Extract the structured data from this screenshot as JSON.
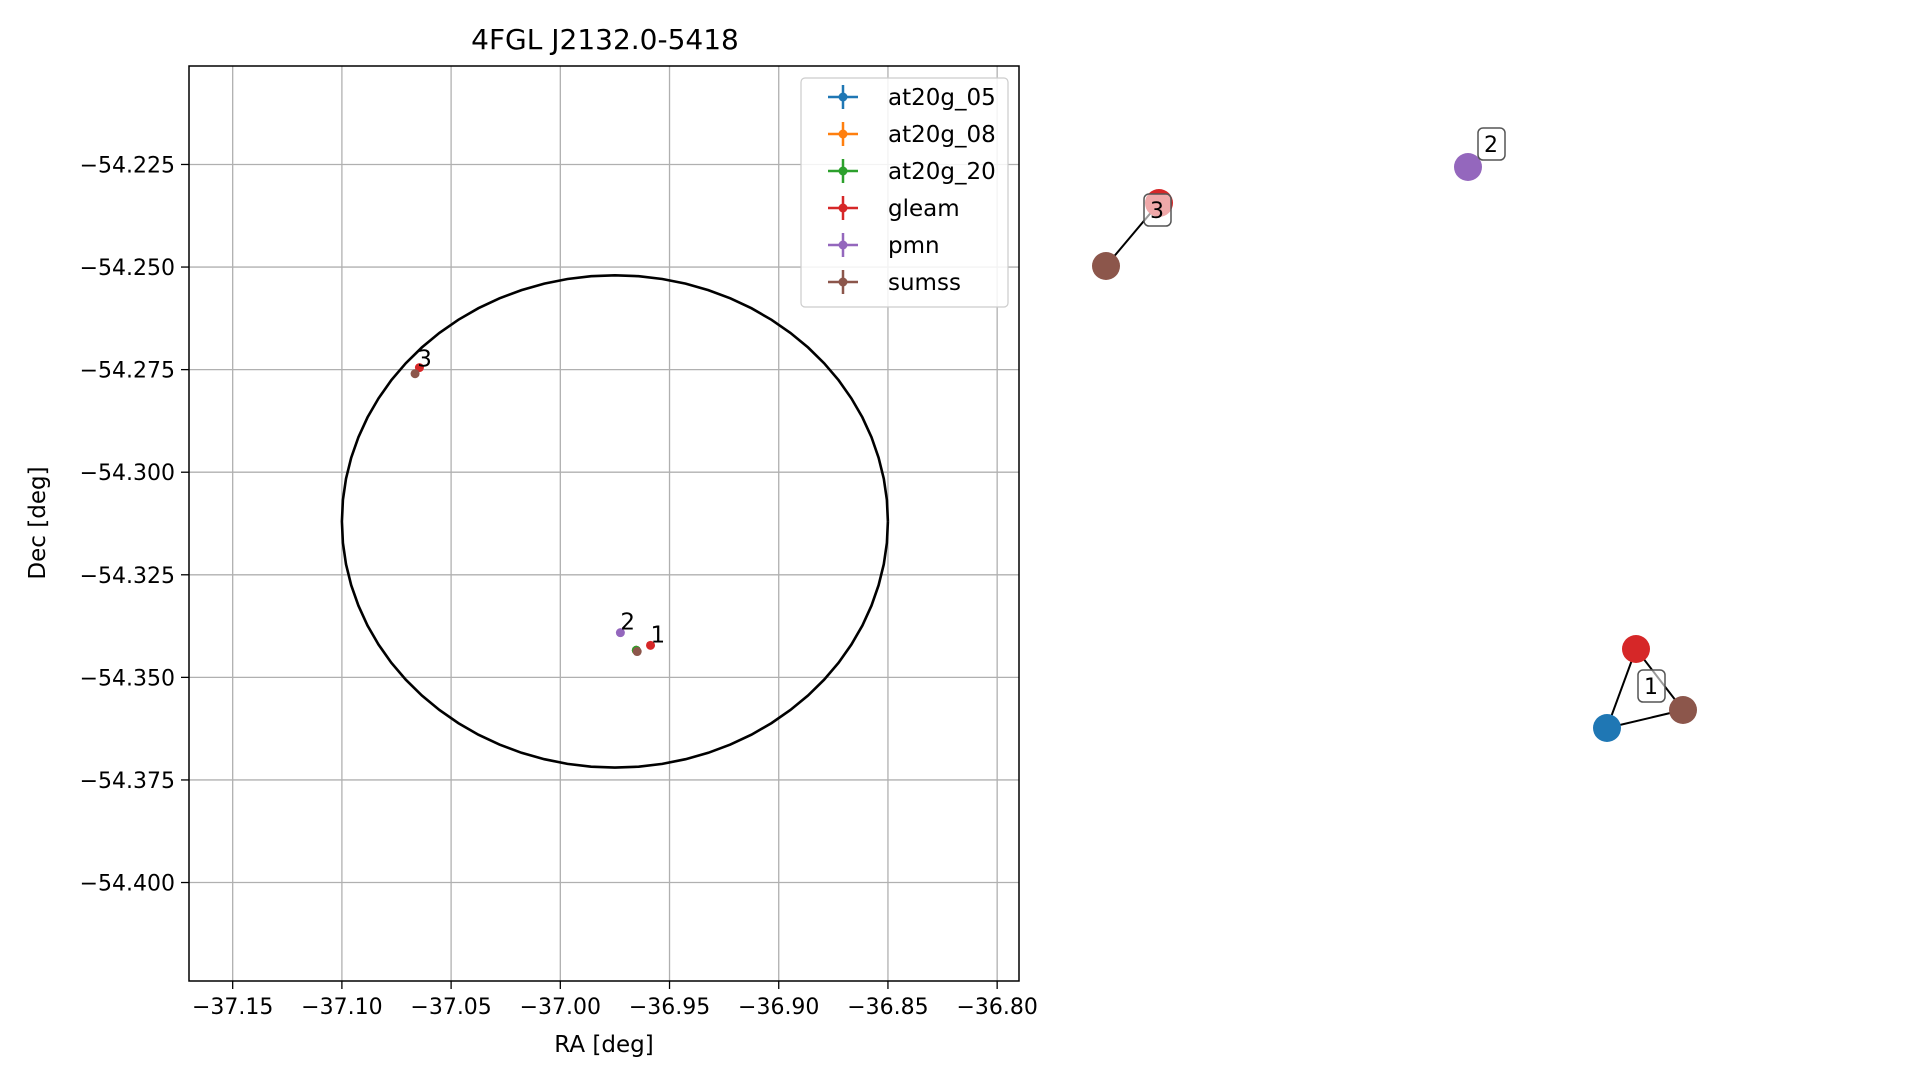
{
  "chart_data": [
    {
      "type": "scatter",
      "title": "4FGL J2132.0-5418",
      "xlabel": "RA [deg]",
      "ylabel": "Dec [deg]",
      "xlim": [
        -37.17,
        -36.79
      ],
      "ylim": [
        -54.424,
        -54.201
      ],
      "grid": true,
      "xticks": [
        -37.15,
        -37.1,
        -37.05,
        -37.0,
        -36.95,
        -36.9,
        -36.85,
        -36.8
      ],
      "xtick_labels": [
        "−37.15",
        "−37.10",
        "−37.05",
        "−37.00",
        "−36.95",
        "−36.90",
        "−36.85",
        "−36.80"
      ],
      "yticks": [
        -54.225,
        -54.25,
        -54.275,
        -54.3,
        -54.325,
        -54.35,
        -54.375,
        -54.4
      ],
      "ytick_labels": [
        "−54.225",
        "−54.250",
        "−54.275",
        "−54.300",
        "−54.325",
        "−54.350",
        "−54.375",
        "−54.400"
      ],
      "legend_position": "top-right",
      "series": [
        {
          "name": "at20g_05",
          "color": "#1f77b4",
          "points": [
            {
              "x": -36.9652,
              "y": -54.3434
            }
          ]
        },
        {
          "name": "at20g_08",
          "color": "#ff7f0e",
          "points": [
            {
              "x": -36.9652,
              "y": -54.3434
            }
          ]
        },
        {
          "name": "at20g_20",
          "color": "#2ca02c",
          "points": [
            {
              "x": -36.9652,
              "y": -54.3434
            }
          ]
        },
        {
          "name": "gleam",
          "color": "#d62728",
          "points": [
            {
              "x": -36.9587,
              "y": -54.3422
            },
            {
              "x": -37.0645,
              "y": -54.2745
            }
          ]
        },
        {
          "name": "pmn",
          "color": "#9467bd",
          "points": [
            {
              "x": -36.9725,
              "y": -54.3391
            }
          ]
        },
        {
          "name": "sumss",
          "color": "#8c564b",
          "points": [
            {
              "x": -36.9648,
              "y": -54.3437
            },
            {
              "x": -37.0665,
              "y": -54.276
            }
          ]
        }
      ],
      "annotations": [
        {
          "text": "1",
          "x": -36.9587,
          "y": -54.3422
        },
        {
          "text": "2",
          "x": -36.9725,
          "y": -54.3391
        },
        {
          "text": "3",
          "x": -37.0655,
          "y": -54.275
        }
      ],
      "ellipse": {
        "center_x": -36.975,
        "center_y": -54.312,
        "width": 0.25,
        "height": 0.12,
        "angle_deg": 0,
        "color": "#000000"
      }
    },
    {
      "type": "network",
      "nodes": [
        {
          "id": "g1",
          "color": "#d62728"
        },
        {
          "id": "a1",
          "color": "#1f77b4"
        },
        {
          "id": "s1",
          "color": "#8c564b"
        },
        {
          "id": "p2",
          "color": "#9467bd"
        },
        {
          "id": "g3",
          "color": "#d62728"
        },
        {
          "id": "s3",
          "color": "#8c564b"
        }
      ],
      "edges": [
        [
          "g1",
          "a1"
        ],
        [
          "a1",
          "s1"
        ],
        [
          "g1",
          "s1"
        ],
        [
          "g3",
          "s3"
        ]
      ],
      "cluster_labels": [
        "1",
        "2",
        "3"
      ]
    }
  ]
}
